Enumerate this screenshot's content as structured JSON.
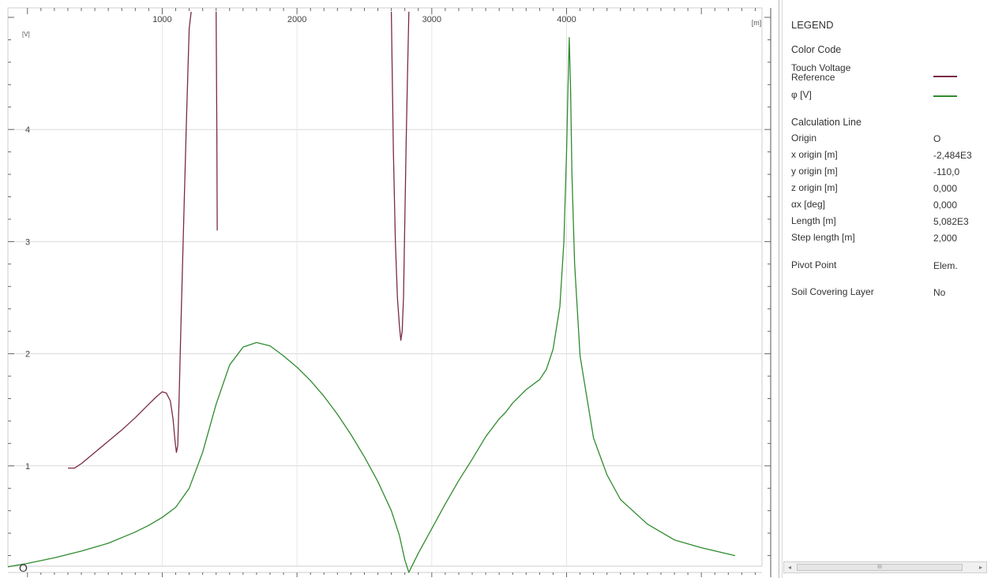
{
  "chart_data": {
    "type": "line",
    "x_unit": "[m]",
    "y_unit": "[V]",
    "xlim": [
      -145,
      5450
    ],
    "ylim": [
      0,
      5
    ],
    "x_ticks": [
      1000,
      2000,
      3000,
      4000
    ],
    "x_tick_labels": [
      "1000",
      "2000",
      "3000",
      "4000"
    ],
    "y_ticks": [
      1,
      2,
      3,
      4
    ],
    "y_tick_labels": [
      "1",
      "2",
      "3",
      "4"
    ],
    "grid": true,
    "legend": "right panel",
    "corner_label": "O",
    "series": [
      {
        "name": "Touch Voltage Reference",
        "color": "#7a2a45",
        "segments": [
          [
            [
              300,
              0.98
            ],
            [
              350,
              0.98
            ],
            [
              400,
              1.02
            ],
            [
              500,
              1.12
            ],
            [
              600,
              1.22
            ],
            [
              700,
              1.32
            ],
            [
              800,
              1.43
            ],
            [
              900,
              1.55
            ],
            [
              960,
              1.62
            ],
            [
              1000,
              1.66
            ],
            [
              1030,
              1.65
            ],
            [
              1060,
              1.58
            ],
            [
              1080,
              1.42
            ],
            [
              1095,
              1.22
            ],
            [
              1105,
              1.12
            ],
            [
              1115,
              1.18
            ],
            [
              1125,
              1.6
            ],
            [
              1140,
              2.3
            ],
            [
              1160,
              3.2
            ],
            [
              1180,
              4.1
            ],
            [
              1200,
              4.9
            ],
            [
              1215,
              5.05
            ]
          ],
          [
            [
              1400,
              5.05
            ],
            [
              1405,
              4.0
            ],
            [
              1408,
              3.1
            ]
          ],
          [
            [
              2700,
              5.05
            ],
            [
              2705,
              4.6
            ],
            [
              2715,
              3.8
            ],
            [
              2730,
              3.0
            ],
            [
              2745,
              2.5
            ],
            [
              2760,
              2.25
            ],
            [
              2770,
              2.12
            ],
            [
              2780,
              2.2
            ],
            [
              2790,
              2.5
            ],
            [
              2800,
              3.2
            ],
            [
              2810,
              3.9
            ],
            [
              2820,
              4.5
            ],
            [
              2830,
              5.05
            ]
          ]
        ]
      },
      {
        "name": "φ [V]",
        "color": "#2f8b2f",
        "segments": [
          [
            [
              -145,
              0.1
            ],
            [
              0,
              0.13
            ],
            [
              200,
              0.18
            ],
            [
              400,
              0.24
            ],
            [
              600,
              0.31
            ],
            [
              800,
              0.41
            ],
            [
              900,
              0.47
            ],
            [
              1000,
              0.54
            ],
            [
              1100,
              0.63
            ],
            [
              1200,
              0.8
            ],
            [
              1300,
              1.12
            ],
            [
              1400,
              1.55
            ],
            [
              1500,
              1.9
            ],
            [
              1600,
              2.06
            ],
            [
              1700,
              2.1
            ],
            [
              1800,
              2.07
            ],
            [
              1900,
              1.98
            ],
            [
              2000,
              1.88
            ],
            [
              2100,
              1.76
            ],
            [
              2200,
              1.62
            ],
            [
              2300,
              1.46
            ],
            [
              2400,
              1.28
            ],
            [
              2500,
              1.08
            ],
            [
              2600,
              0.86
            ],
            [
              2700,
              0.6
            ],
            [
              2760,
              0.38
            ],
            [
              2800,
              0.16
            ],
            [
              2830,
              0.05
            ],
            [
              2850,
              0.1
            ],
            [
              2900,
              0.22
            ],
            [
              3000,
              0.44
            ],
            [
              3100,
              0.66
            ],
            [
              3200,
              0.87
            ],
            [
              3300,
              1.06
            ],
            [
              3400,
              1.26
            ],
            [
              3500,
              1.42
            ],
            [
              3550,
              1.48
            ],
            [
              3600,
              1.56
            ],
            [
              3700,
              1.68
            ],
            [
              3800,
              1.77
            ],
            [
              3850,
              1.86
            ],
            [
              3900,
              2.04
            ],
            [
              3950,
              2.42
            ],
            [
              3980,
              3.0
            ],
            [
              4000,
              3.8
            ],
            [
              4010,
              4.35
            ],
            [
              4020,
              4.82
            ],
            [
              4030,
              4.35
            ],
            [
              4040,
              3.6
            ],
            [
              4060,
              2.8
            ],
            [
              4100,
              1.98
            ],
            [
              4200,
              1.25
            ],
            [
              4300,
              0.92
            ],
            [
              4400,
              0.7
            ],
            [
              4600,
              0.48
            ],
            [
              4800,
              0.34
            ],
            [
              5000,
              0.27
            ],
            [
              5250,
              0.2
            ]
          ]
        ]
      }
    ]
  },
  "legend_panel": {
    "title": "LEGEND",
    "color_code_heading": "Color Code",
    "series_labels": [
      "Touch Voltage\nReference",
      "φ [V]"
    ],
    "calc_line_heading": "Calculation Line",
    "rows": [
      {
        "label": "Origin",
        "value": "O"
      },
      {
        "label": "x origin [m]",
        "value": "-2,484E3"
      },
      {
        "label": "y origin [m]",
        "value": "-110,0"
      },
      {
        "label": "z origin [m]",
        "value": "0,000"
      },
      {
        "label": "αx [deg]",
        "value": "0,000"
      },
      {
        "label": "Length [m]",
        "value": "5,082E3"
      },
      {
        "label": "Step length [m]",
        "value": "2,000"
      }
    ],
    "pivot": {
      "label": "Pivot Point",
      "value": "Elem."
    },
    "soil": {
      "label": "Soil Covering Layer",
      "value": "No"
    }
  },
  "scrollbar": {
    "left_arrow": "◂",
    "right_arrow": "▸",
    "thumb_label": "III"
  }
}
